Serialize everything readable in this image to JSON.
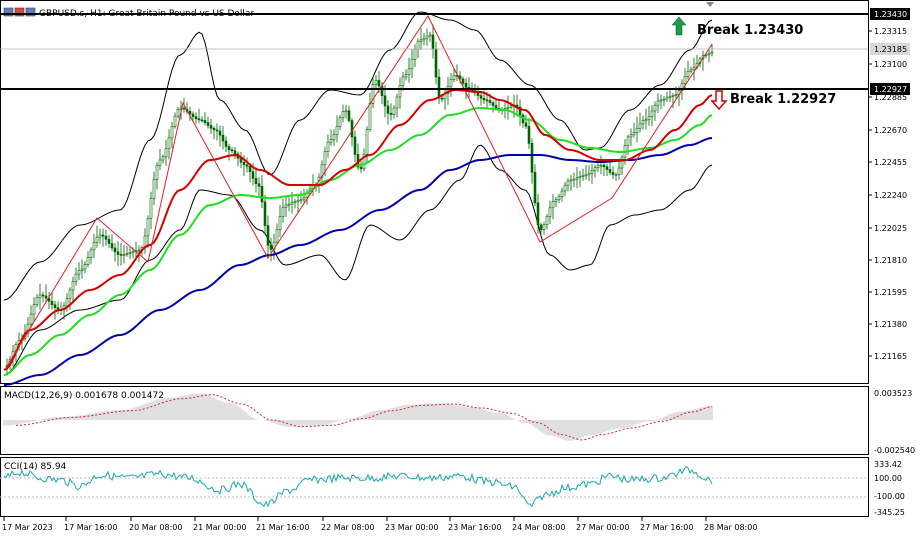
{
  "header": {
    "title": "GBPUSD.s, H1: Great Britain Pound vs US Dollar"
  },
  "annotations": {
    "break_up_label": "Break 1.23430",
    "break_down_label": "Break 1.22927"
  },
  "price_axis": {
    "ticks": [
      "1.23315",
      "1.23100",
      "1.22885",
      "1.22670",
      "1.22455",
      "1.22240",
      "1.22025",
      "1.21810",
      "1.21595",
      "1.21380",
      "1.21165"
    ],
    "current_price": "1.23185",
    "resistance_tag": "1.23430",
    "support_tag": "1.22927"
  },
  "macd": {
    "label": "MACD(12,26,9) 0.001678 0.001472",
    "top_tick": "0.003523",
    "bottom_tick": "-0.002540"
  },
  "cci": {
    "label": "CCI(14) 85.94",
    "ticks": [
      "333.42",
      "100.00",
      "-100.00",
      "-345.25"
    ]
  },
  "time_axis": {
    "ticks": [
      "17 Mar 2023",
      "17 Mar 16:00",
      "20 Mar 08:00",
      "21 Mar 00:00",
      "21 Mar 16:00",
      "22 Mar 08:00",
      "23 Mar 00:00",
      "23 Mar 16:00",
      "24 Mar 08:00",
      "27 Mar 00:00",
      "27 Mar 16:00",
      "28 Mar 08:00"
    ]
  },
  "colors": {
    "resistance_line": "#000000",
    "support_line": "#000000",
    "bollinger": "#000000",
    "ma_fast": "#d40000",
    "ma_mid": "#22dd22",
    "ma_slow": "#0000aa",
    "zigzag": "#dd2222",
    "candle": "#006400",
    "up_arrow": "#1a9a4a",
    "down_arrow": "#d00000",
    "macd_hist": "#c0c0c0",
    "macd_signal": "#dd2222",
    "cci_line": "#1aa6b0"
  }
}
